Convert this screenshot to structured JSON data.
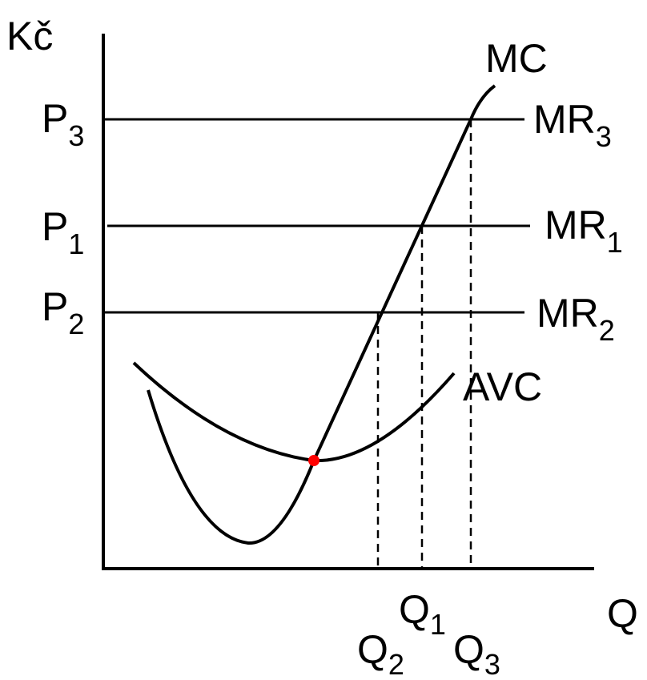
{
  "axes": {
    "y_label": "Kč",
    "x_label": "Q"
  },
  "curves": {
    "mc": "MC",
    "avc": "AVC"
  },
  "price_levels": [
    {
      "key": "p3",
      "price_main": "P",
      "price_sub": "3",
      "mr_main": "MR",
      "mr_sub": "3"
    },
    {
      "key": "p1",
      "price_main": "P",
      "price_sub": "1",
      "mr_main": "MR",
      "mr_sub": "1"
    },
    {
      "key": "p2",
      "price_main": "P",
      "price_sub": "2",
      "mr_main": "MR",
      "mr_sub": "2"
    }
  ],
  "quantities": [
    {
      "key": "q1",
      "main": "Q",
      "sub": "1"
    },
    {
      "key": "q2",
      "main": "Q",
      "sub": "2"
    },
    {
      "key": "q3",
      "main": "Q",
      "sub": "3"
    }
  ],
  "colors": {
    "line": "#000000",
    "shutdown_point": "#ff0000"
  }
}
